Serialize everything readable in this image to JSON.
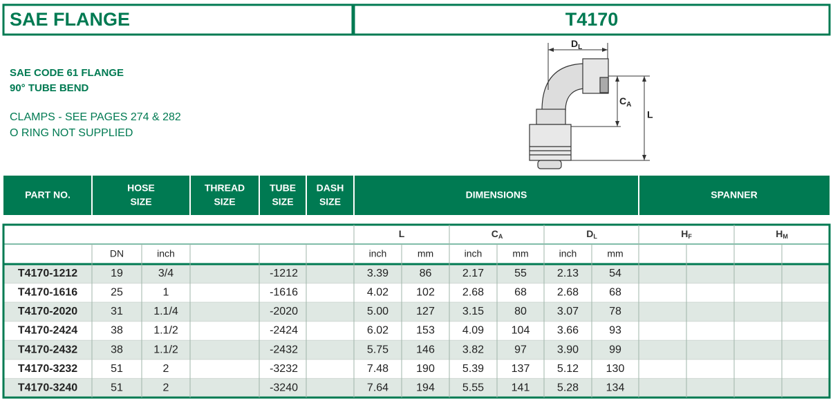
{
  "header": {
    "category": "SAE FLANGE",
    "product": "T4170"
  },
  "description": {
    "headline": [
      "SAE CODE 61 FLANGE",
      "90° TUBE BEND"
    ],
    "notes": [
      "CLAMPS - SEE PAGES 274 & 282",
      "O RING NOT SUPPLIED"
    ]
  },
  "diagram": {
    "labels": [
      {
        "symbol": "D",
        "subscript": "L"
      },
      {
        "symbol": "C",
        "subscript": "A"
      },
      {
        "symbol": "L"
      }
    ]
  },
  "table": {
    "columns": [
      [
        "PART NO."
      ],
      [
        "HOSE",
        "SIZE"
      ],
      [
        "THREAD",
        "SIZE"
      ],
      [
        "TUBE",
        "SIZE"
      ],
      [
        "DASH",
        "SIZE"
      ],
      [
        "DIMENSIONS"
      ],
      [
        "SPANNER"
      ]
    ],
    "dimension_groups": [
      {
        "symbol": "L"
      },
      {
        "symbol": "C",
        "subscript": "A"
      },
      {
        "symbol": "D",
        "subscript": "L"
      }
    ],
    "spanner_groups": [
      {
        "symbol": "H",
        "subscript": "F"
      },
      {
        "symbol": "H",
        "subscript": "M"
      }
    ],
    "hose_units": [
      "DN",
      "inch"
    ],
    "dimension_units": [
      "inch",
      "mm"
    ],
    "rows": [
      [
        "T4170-1212",
        "19",
        "3/4",
        "-1212",
        "3.39",
        "86",
        "2.17",
        "55",
        "2.13",
        "54"
      ],
      [
        "T4170-1616",
        "25",
        "1",
        "-1616",
        "4.02",
        "102",
        "2.68",
        "68",
        "2.68",
        "68"
      ],
      [
        "T4170-2020",
        "31",
        "1.1/4",
        "-2020",
        "5.00",
        "127",
        "3.15",
        "80",
        "3.07",
        "78"
      ],
      [
        "T4170-2424",
        "38",
        "1.1/2",
        "-2424",
        "6.02",
        "153",
        "4.09",
        "104",
        "3.66",
        "93"
      ],
      [
        "T4170-2432",
        "38",
        "1.1/2",
        "-2432",
        "5.75",
        "146",
        "3.82",
        "97",
        "3.90",
        "99"
      ],
      [
        "T4170-3232",
        "51",
        "2",
        "-3232",
        "7.48",
        "190",
        "5.39",
        "137",
        "5.12",
        "130"
      ],
      [
        "T4170-3240",
        "51",
        "2",
        "-3240",
        "7.64",
        "194",
        "5.55",
        "141",
        "5.28",
        "134"
      ]
    ]
  }
}
